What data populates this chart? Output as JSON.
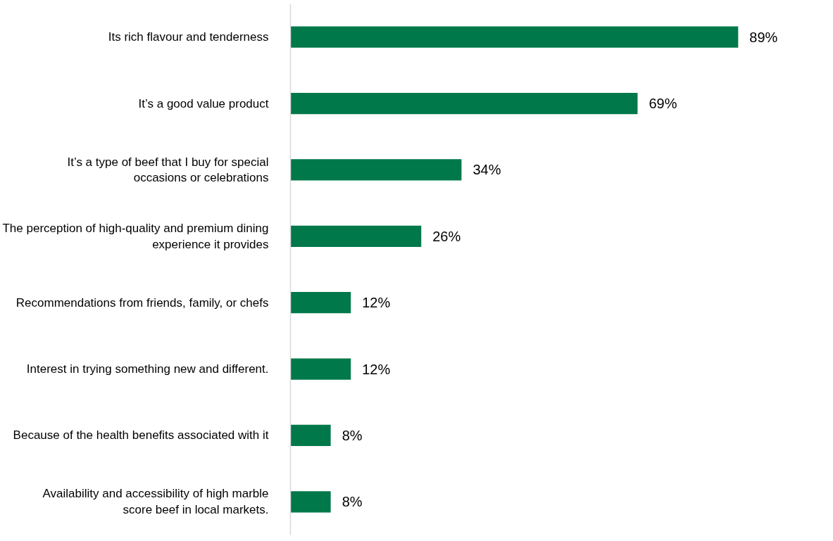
{
  "chart_data": {
    "type": "bar",
    "orientation": "horizontal",
    "categories": [
      "Its rich flavour and tenderness",
      "It’s a good value product",
      "It’s a type of beef that I buy for special occasions or celebrations",
      "The perception of high-quality and premium dining experience it provides",
      "Recommendations from friends, family, or chefs",
      "Interest in trying something new and different.",
      "Because of the health benefits associated with it",
      "Availability and accessibility of high marble score beef in local markets."
    ],
    "values": [
      89,
      69,
      34,
      26,
      12,
      12,
      8,
      8
    ],
    "value_labels": [
      "89%",
      "69%",
      "34%",
      "26%",
      "12%",
      "12%",
      "8%",
      "8%"
    ],
    "color": "#00784a",
    "grid": false
  }
}
